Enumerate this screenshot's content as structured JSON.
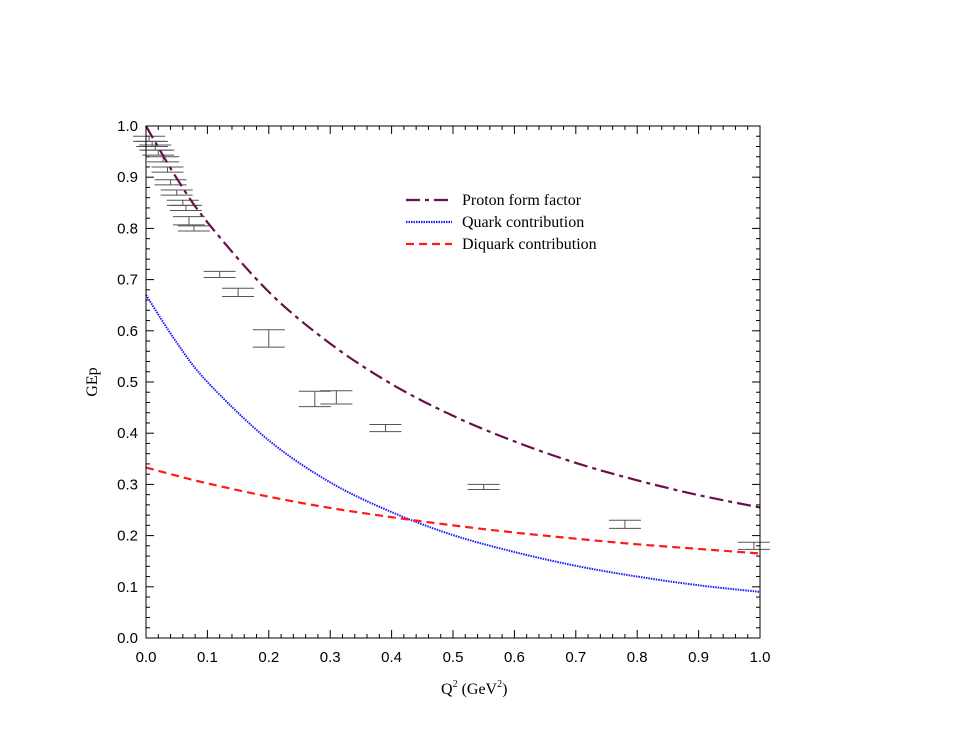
{
  "chart_data": {
    "type": "line",
    "title": "",
    "xlabel": "Q² (GeV²)",
    "ylabel": "GEp",
    "xlim": [
      0.0,
      1.0
    ],
    "ylim": [
      0.0,
      1.0
    ],
    "grid": false,
    "legend_placement": "top-center",
    "x_ticks": [
      "0.0",
      "0.1",
      "0.2",
      "0.3",
      "0.4",
      "0.5",
      "0.6",
      "0.7",
      "0.8",
      "0.9",
      "1.0"
    ],
    "y_ticks": [
      "0.0",
      "0.1",
      "0.2",
      "0.3",
      "0.4",
      "0.5",
      "0.6",
      "0.7",
      "0.8",
      "0.9",
      "1.0"
    ],
    "x": [
      0,
      0.05,
      0.1,
      0.2,
      0.3,
      0.4,
      0.5,
      0.6,
      0.7,
      0.8,
      0.9,
      1.0
    ],
    "series": [
      {
        "name": "Proton form factor",
        "style": "dash-dot",
        "color": "#6b0f4a",
        "values": [
          1.0,
          0.898,
          0.812,
          0.676,
          0.575,
          0.496,
          0.434,
          0.384,
          0.342,
          0.308,
          0.279,
          0.255
        ]
      },
      {
        "name": "Quark contribution",
        "style": "dotted",
        "color": "#1a1aff",
        "values": [
          0.67,
          0.577,
          0.5,
          0.386,
          0.304,
          0.246,
          0.201,
          0.168,
          0.141,
          0.12,
          0.103,
          0.09
        ]
      },
      {
        "name": "Diquark contribution",
        "style": "dashed",
        "color": "#ff1a1a",
        "values": [
          0.333,
          0.317,
          0.302,
          0.276,
          0.254,
          0.236,
          0.22,
          0.206,
          0.194,
          0.183,
          0.174,
          0.165
        ]
      }
    ],
    "data_points": {
      "color": "#555555",
      "points": [
        {
          "x": 0.005,
          "y": 0.975,
          "err": 0.005
        },
        {
          "x": 0.01,
          "y": 0.965,
          "err": 0.005
        },
        {
          "x": 0.015,
          "y": 0.958,
          "err": 0.005
        },
        {
          "x": 0.02,
          "y": 0.948,
          "err": 0.005
        },
        {
          "x": 0.028,
          "y": 0.935,
          "err": 0.005
        },
        {
          "x": 0.035,
          "y": 0.915,
          "err": 0.005
        },
        {
          "x": 0.04,
          "y": 0.89,
          "err": 0.005
        },
        {
          "x": 0.05,
          "y": 0.87,
          "err": 0.005
        },
        {
          "x": 0.06,
          "y": 0.85,
          "err": 0.005
        },
        {
          "x": 0.065,
          "y": 0.84,
          "err": 0.005
        },
        {
          "x": 0.07,
          "y": 0.815,
          "err": 0.008
        },
        {
          "x": 0.078,
          "y": 0.8,
          "err": 0.005
        },
        {
          "x": 0.12,
          "y": 0.71,
          "err": 0.006
        },
        {
          "x": 0.15,
          "y": 0.675,
          "err": 0.008
        },
        {
          "x": 0.2,
          "y": 0.585,
          "err": 0.017
        },
        {
          "x": 0.275,
          "y": 0.467,
          "err": 0.015
        },
        {
          "x": 0.31,
          "y": 0.47,
          "err": 0.013
        },
        {
          "x": 0.39,
          "y": 0.41,
          "err": 0.007
        },
        {
          "x": 0.55,
          "y": 0.295,
          "err": 0.005
        },
        {
          "x": 0.78,
          "y": 0.222,
          "err": 0.008
        },
        {
          "x": 0.99,
          "y": 0.18,
          "err": 0.007
        }
      ]
    }
  }
}
